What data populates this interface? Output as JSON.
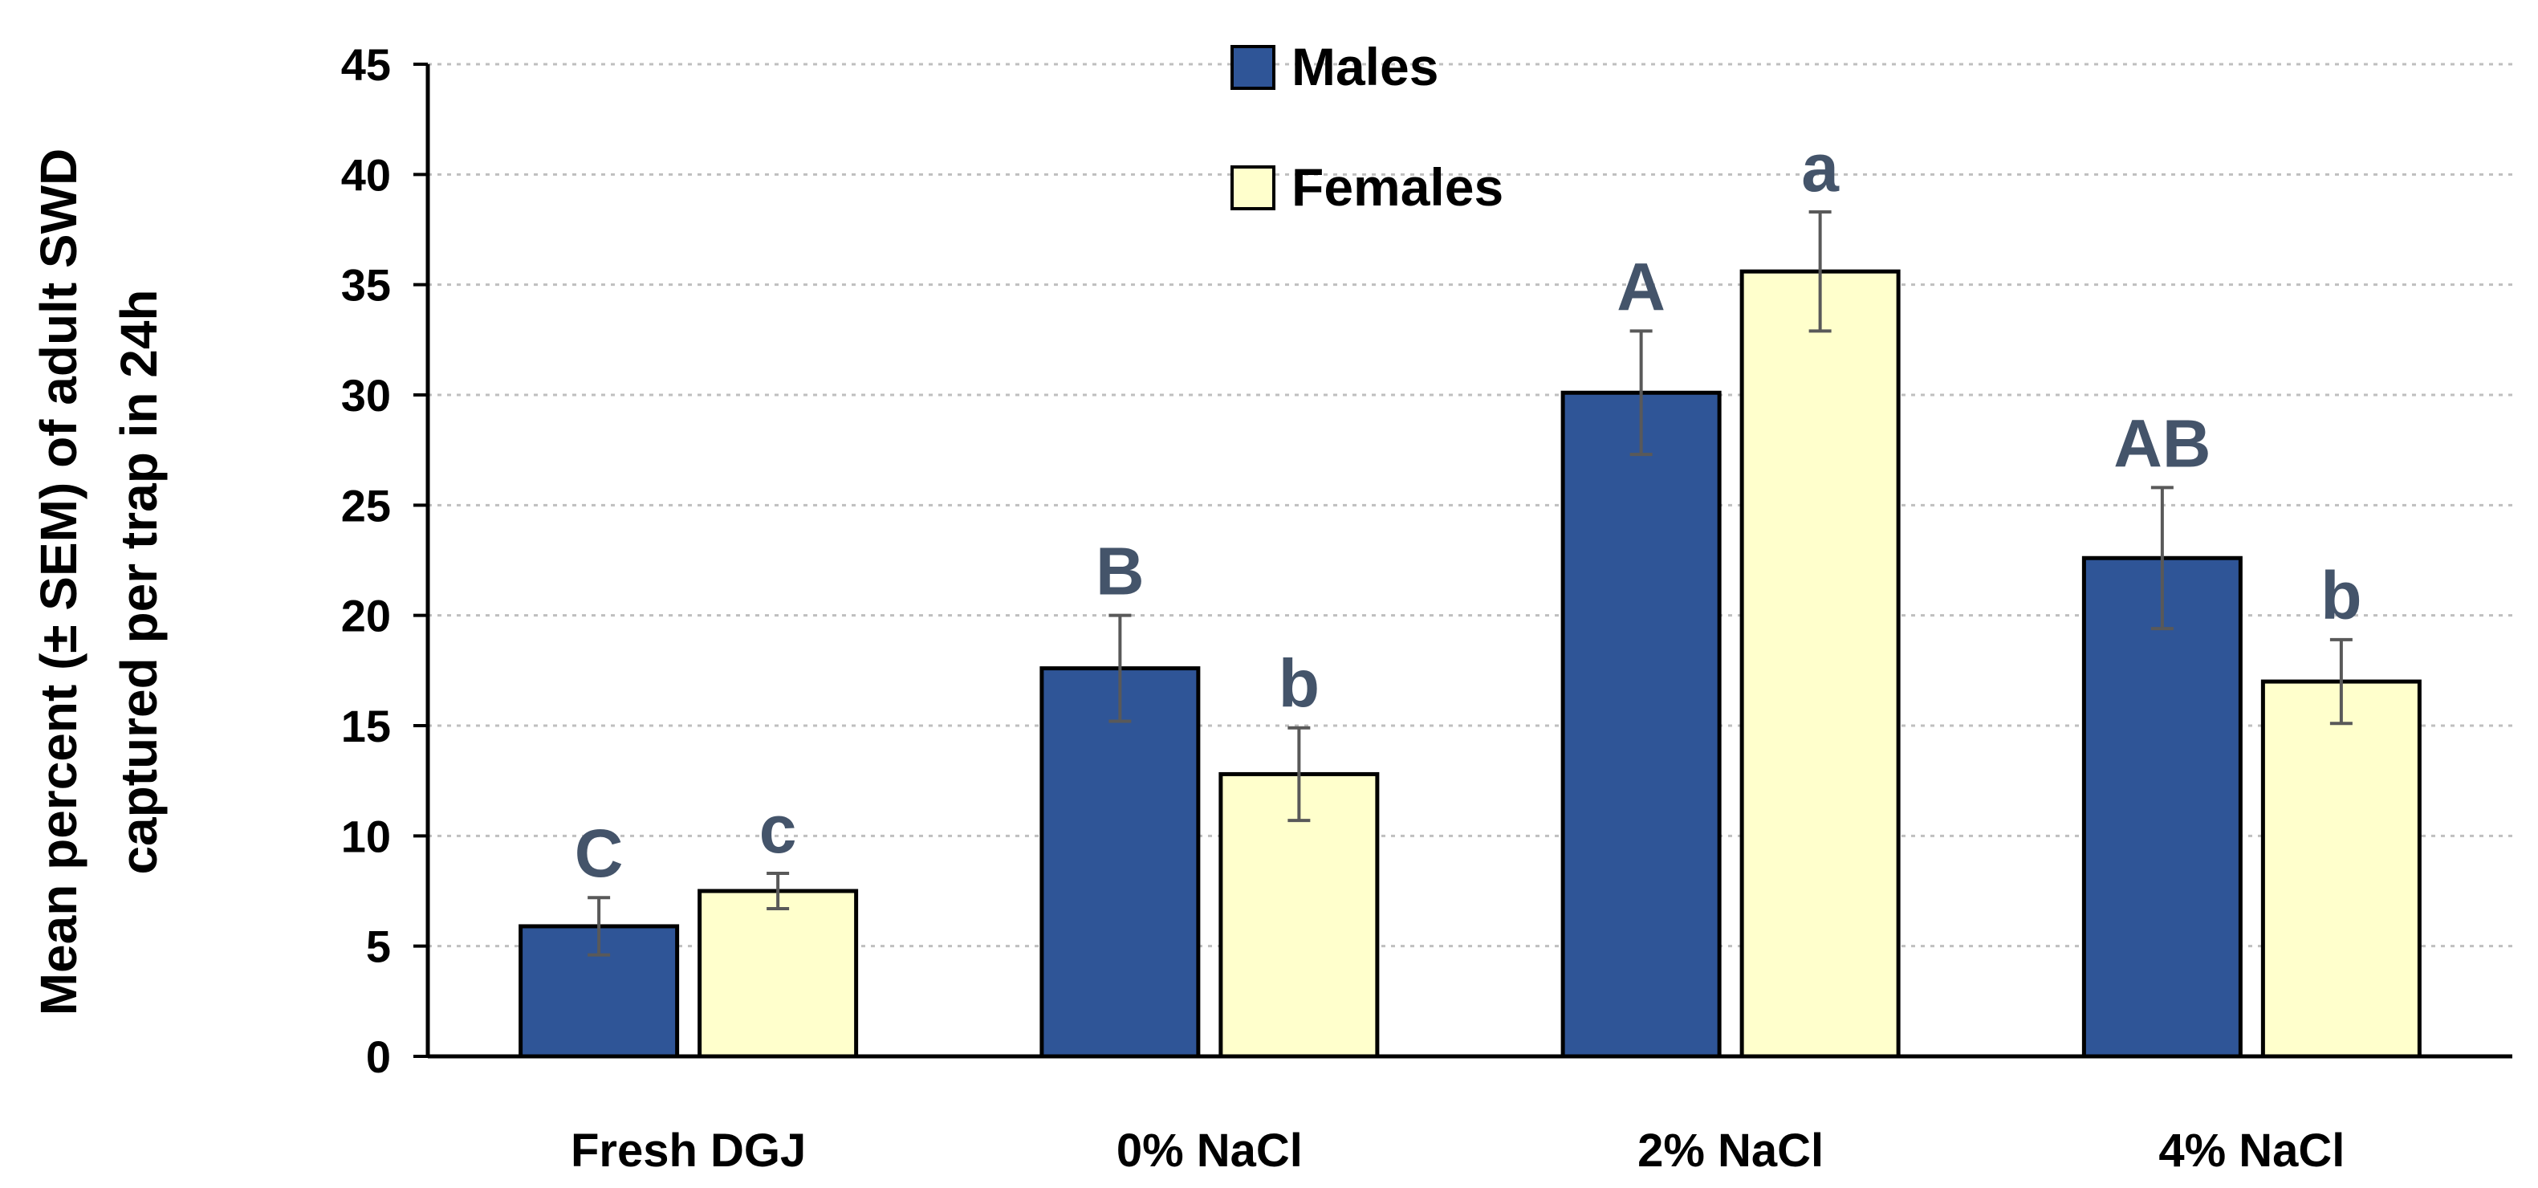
{
  "chart_data": {
    "type": "bar",
    "title": "",
    "xlabel": "",
    "ylabel_lines": [
      "Mean percent (± SEM) of adult SWD",
      "captured per trap in 24h"
    ],
    "ylim": [
      0,
      45
    ],
    "yticks": [
      0,
      5,
      10,
      15,
      20,
      25,
      30,
      35,
      40,
      45
    ],
    "grid": "horizontal-dotted",
    "legend_position": "top-center",
    "categories": [
      "Fresh DGJ",
      "0% NaCl",
      "2% NaCl",
      "4% NaCl"
    ],
    "series": [
      {
        "name": "Males",
        "color": "#2f5597",
        "values": [
          5.9,
          17.6,
          30.1,
          22.6
        ],
        "errors": [
          1.3,
          2.4,
          2.8,
          3.2
        ],
        "significance": [
          "C",
          "B",
          "A",
          "AB"
        ]
      },
      {
        "name": "Females",
        "color": "#ffffcc",
        "values": [
          7.5,
          12.8,
          35.6,
          17.0
        ],
        "errors": [
          0.8,
          2.1,
          2.7,
          1.9
        ],
        "significance": [
          "c",
          "b",
          "a",
          "b"
        ]
      }
    ],
    "colors": {
      "axis": "#000000",
      "grid": "#bfbfbf",
      "error_bar": "#595959",
      "significance_text": "#44546a"
    }
  }
}
